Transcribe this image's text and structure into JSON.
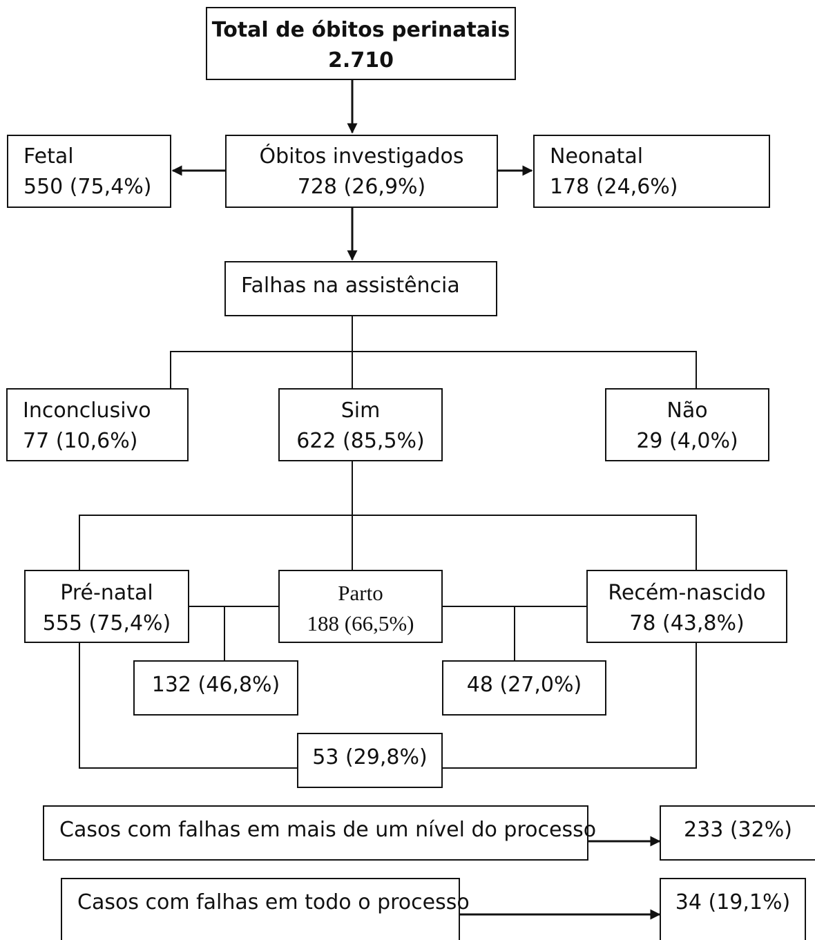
{
  "total": {
    "label": "Total de óbitos perinatais",
    "value": "2.710"
  },
  "investigated": {
    "label": "Óbitos investigados",
    "value": "728 (26,9%)"
  },
  "fetal": {
    "label": "Fetal",
    "value": "550 (75,4%)"
  },
  "neonatal": {
    "label": "Neonatal",
    "value": "178 (24,6%)"
  },
  "failures": {
    "label": "Falhas na assistência"
  },
  "inconclusive": {
    "label": "Inconclusivo",
    "value": "77 (10,6%)"
  },
  "yes": {
    "label": "Sim",
    "value": "622 (85,5%)"
  },
  "no": {
    "label": "Não",
    "value": "29 (4,0%)"
  },
  "prenatal": {
    "label": "Pré-natal",
    "value": "555 (75,4%)"
  },
  "birth": {
    "label": "Parto",
    "value": "188 (66,5%)"
  },
  "newborn": {
    "label": "Recém-nascido",
    "value": "78 (43,8%)"
  },
  "prenatal_birth": {
    "value": "132 (46,8%)"
  },
  "birth_newborn": {
    "value": "48 (27,0%)"
  },
  "prenatal_newborn": {
    "value": "53 (29,8%)"
  },
  "multi_level": {
    "label": "Casos com falhas em mais de um nível do processo",
    "value": "233 (32%)"
  },
  "whole_process": {
    "label": "Casos com falhas em todo o processo",
    "value": "34 (19,1%)"
  }
}
